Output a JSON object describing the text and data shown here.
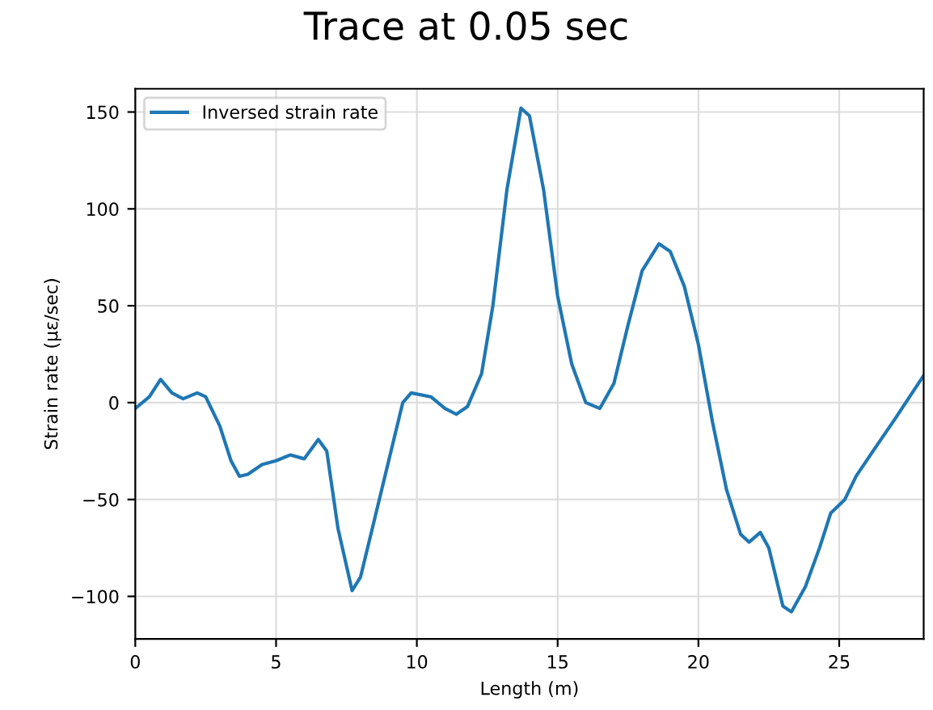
{
  "chart_data": {
    "type": "line",
    "title": "Trace at 0.05 sec",
    "xlabel": "Length (m)",
    "ylabel": "Strain rate (με/sec)",
    "xlim": [
      0,
      28
    ],
    "ylim": [
      -122,
      162
    ],
    "xticks": [
      0,
      5,
      10,
      15,
      20,
      25
    ],
    "yticks": [
      -100,
      -50,
      0,
      50,
      100,
      150
    ],
    "grid": true,
    "legend": "top left",
    "series": [
      {
        "name": "Inversed strain rate",
        "color": "#1f77b4",
        "x": [
          0,
          0.5,
          0.9,
          1.3,
          1.7,
          2.2,
          2.5,
          3.0,
          3.4,
          3.7,
          4.0,
          4.5,
          5.0,
          5.5,
          6.0,
          6.5,
          6.8,
          7.2,
          7.7,
          8.0,
          8.5,
          9.0,
          9.5,
          9.8,
          10.5,
          11.0,
          11.4,
          11.8,
          12.3,
          12.7,
          13.2,
          13.7,
          14.0,
          14.5,
          15.0,
          15.5,
          16.0,
          16.5,
          17.0,
          17.5,
          18.0,
          18.6,
          19.0,
          19.5,
          20.0,
          20.5,
          21.0,
          21.5,
          21.8,
          22.2,
          22.5,
          23.0,
          23.3,
          23.8,
          24.3,
          24.7,
          25.2,
          25.6,
          26.2,
          27.0,
          28.0
        ],
        "values": [
          -3,
          3,
          12,
          5,
          2,
          5,
          3,
          -12,
          -30,
          -38,
          -37,
          -32,
          -30,
          -27,
          -29,
          -19,
          -25,
          -65,
          -97,
          -90,
          -60,
          -30,
          0,
          5,
          3,
          -3,
          -6,
          -2,
          15,
          50,
          110,
          152,
          148,
          110,
          55,
          20,
          0,
          -3,
          10,
          40,
          68,
          82,
          78,
          60,
          30,
          -10,
          -45,
          -68,
          -72,
          -67,
          -75,
          -105,
          -108,
          -95,
          -75,
          -57,
          -50,
          -38,
          -25,
          -8,
          14
        ]
      }
    ]
  }
}
